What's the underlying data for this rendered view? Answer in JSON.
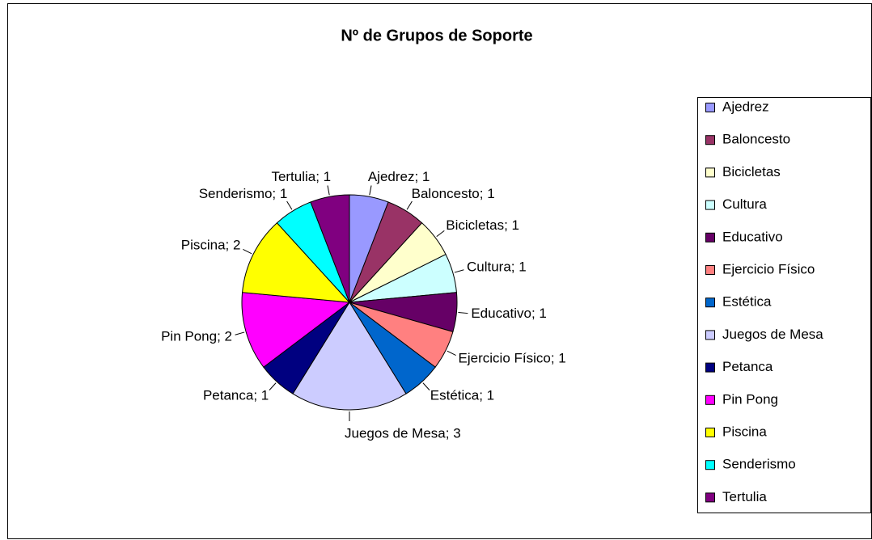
{
  "chart_data": {
    "type": "pie",
    "title": "Nº de Grupos de Soporte",
    "categories": [
      "Ajedrez",
      "Baloncesto",
      "Bicicletas",
      "Cultura",
      "Educativo",
      "Ejercicio Físico",
      "Estética",
      "Juegos de Mesa",
      "Petanca",
      "Pin Pong",
      "Piscina",
      "Senderismo",
      "Tertulia"
    ],
    "values": [
      1,
      1,
      1,
      1,
      1,
      1,
      1,
      3,
      1,
      2,
      2,
      1,
      1
    ],
    "value_labels": [
      "Ajedrez; 1",
      "Baloncesto; 1",
      "Bicicletas; 1",
      "Cultura; 1",
      "Educativo; 1",
      "Ejercicio Físico; 1",
      "Estética; 1",
      "Juegos de Mesa; 3",
      "Petanca; 1",
      "Pin Pong; 2",
      "Piscina; 2",
      "Senderismo; 1",
      "Tertulia; 1"
    ],
    "colors": [
      "#9999ff",
      "#993366",
      "#ffffcc",
      "#ccffff",
      "#660066",
      "#ff8080",
      "#0066cc",
      "#ccccff",
      "#000080",
      "#ff00ff",
      "#ffff00",
      "#00ffff",
      "#800080"
    ],
    "legend": "right"
  }
}
